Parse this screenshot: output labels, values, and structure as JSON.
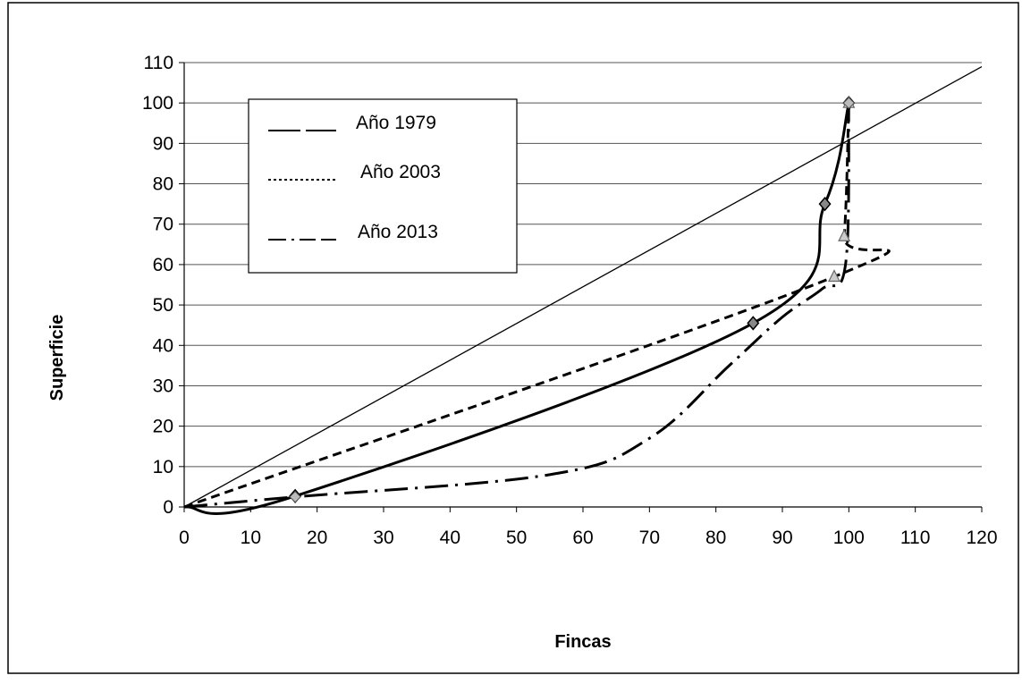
{
  "chart_data": {
    "type": "line",
    "title": "",
    "xlabel": "Fincas",
    "ylabel": "Superficie",
    "xlim": [
      0,
      120
    ],
    "ylim": [
      0,
      110
    ],
    "x_ticks": [
      0,
      10,
      20,
      30,
      40,
      50,
      60,
      70,
      80,
      90,
      100,
      110,
      120
    ],
    "y_ticks": [
      0,
      10,
      20,
      30,
      40,
      50,
      60,
      70,
      80,
      90,
      100,
      110
    ],
    "grid": "horizontal",
    "legend": "top-left",
    "reference_line": {
      "x": [
        0,
        120
      ],
      "y": [
        0,
        109
      ]
    },
    "series": [
      {
        "name": "Año 1979",
        "style": "solid",
        "color": "#000000",
        "x": [
          0,
          16.7,
          85.6,
          96.4,
          100
        ],
        "y": [
          0,
          2.7,
          45.5,
          75,
          100
        ]
      },
      {
        "name": "Año 2003",
        "style": "dotted",
        "color": "#000000",
        "x": [
          0,
          97.8,
          99.3,
          100
        ],
        "y": [
          0,
          57,
          67,
          100
        ]
      },
      {
        "name": "Año 2013",
        "style": "dashdot",
        "color": "#000000",
        "x": [
          0,
          16.7,
          55,
          70,
          82,
          90,
          96,
          99.5,
          100
        ],
        "y": [
          0,
          2.5,
          8,
          17,
          35,
          47,
          54,
          60,
          100
        ]
      }
    ]
  }
}
